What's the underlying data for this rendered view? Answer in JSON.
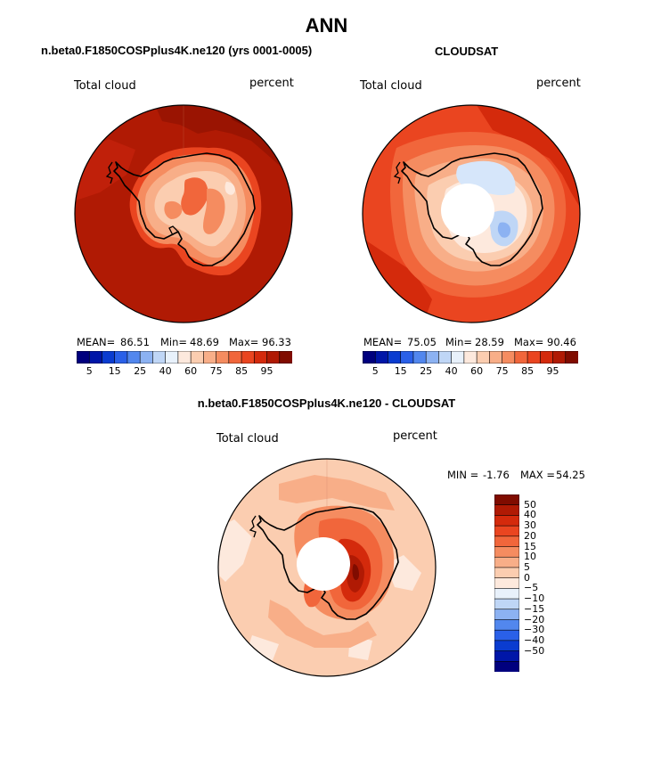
{
  "page_title": "ANN",
  "panel_left": {
    "subtitle": "n.beta0.F1850COSPplus4K.ne120 (yrs 0001-0005)",
    "variable": "Total cloud",
    "units": "percent",
    "mean_label": "MEAN=",
    "mean": "86.51",
    "min_label": "Min=",
    "min": "48.69",
    "max_label": "Max=",
    "max": "96.33"
  },
  "panel_right": {
    "subtitle": "CLOUDSAT",
    "variable": "Total cloud",
    "units": "percent",
    "mean_label": "MEAN=",
    "mean": "75.05",
    "min_label": "Min=",
    "min": "28.59",
    "max_label": "Max=",
    "max": "90.46"
  },
  "panel_diff": {
    "subtitle": "n.beta0.F1850COSPplus4K.ne120 - CLOUDSAT",
    "variable": "Total cloud",
    "units": "percent",
    "min_label": "MIN =",
    "min": "-1.76",
    "max_label": "MAX =",
    "max": "54.25"
  },
  "colorbar_abs": {
    "colors": [
      "#00007e",
      "#0016a8",
      "#0a3cd0",
      "#2a60e8",
      "#5287ee",
      "#8cb2f2",
      "#bfd6f6",
      "#e8f1fb",
      "#fde9dd",
      "#fbcdb0",
      "#f8ae88",
      "#f58c60",
      "#f1663b",
      "#ea4520",
      "#d42a0c",
      "#b01a04",
      "#800c00"
    ],
    "tick_labels": [
      "5",
      "15",
      "25",
      "40",
      "60",
      "75",
      "85",
      "95"
    ]
  },
  "colorbar_diff": {
    "colors": [
      "#800c00",
      "#b01a04",
      "#d42a0c",
      "#ea4520",
      "#f1663b",
      "#f58c60",
      "#f8ae88",
      "#fbcdb0",
      "#fde9dd",
      "#e8f1fb",
      "#bfd6f6",
      "#8cb2f2",
      "#5287ee",
      "#2a60e8",
      "#0a3cd0",
      "#0016a8",
      "#00007e"
    ],
    "tick_labels": [
      "50",
      "40",
      "30",
      "20",
      "15",
      "10",
      "5",
      "0",
      "−5",
      "−10",
      "−15",
      "−20",
      "−30",
      "−40",
      "−50"
    ]
  },
  "chart_data": [
    {
      "type": "heatmap",
      "title": "n.beta0.F1850COSPplus4K.ne120 (yrs 0001-0005)",
      "projection": "south polar stereographic",
      "variable": "Total cloud",
      "units": "percent",
      "levels": [
        5,
        10,
        15,
        20,
        25,
        30,
        40,
        50,
        60,
        65,
        75,
        80,
        85,
        90,
        95
      ],
      "stats": {
        "mean": 86.51,
        "min": 48.69,
        "max": 96.33
      }
    },
    {
      "type": "heatmap",
      "title": "CLOUDSAT",
      "projection": "south polar stereographic",
      "variable": "Total cloud",
      "units": "percent",
      "levels": [
        5,
        10,
        15,
        20,
        25,
        30,
        40,
        50,
        60,
        65,
        75,
        80,
        85,
        90,
        95
      ],
      "stats": {
        "mean": 75.05,
        "min": 28.59,
        "max": 90.46
      }
    },
    {
      "type": "heatmap",
      "title": "n.beta0.F1850COSPplus4K.ne120 - CLOUDSAT",
      "projection": "south polar stereographic",
      "variable": "Total cloud",
      "units": "percent",
      "levels": [
        -50,
        -40,
        -30,
        -20,
        -15,
        -10,
        -5,
        0,
        5,
        10,
        15,
        20,
        30,
        40,
        50
      ],
      "stats": {
        "min": -1.76,
        "max": 54.25
      }
    }
  ]
}
